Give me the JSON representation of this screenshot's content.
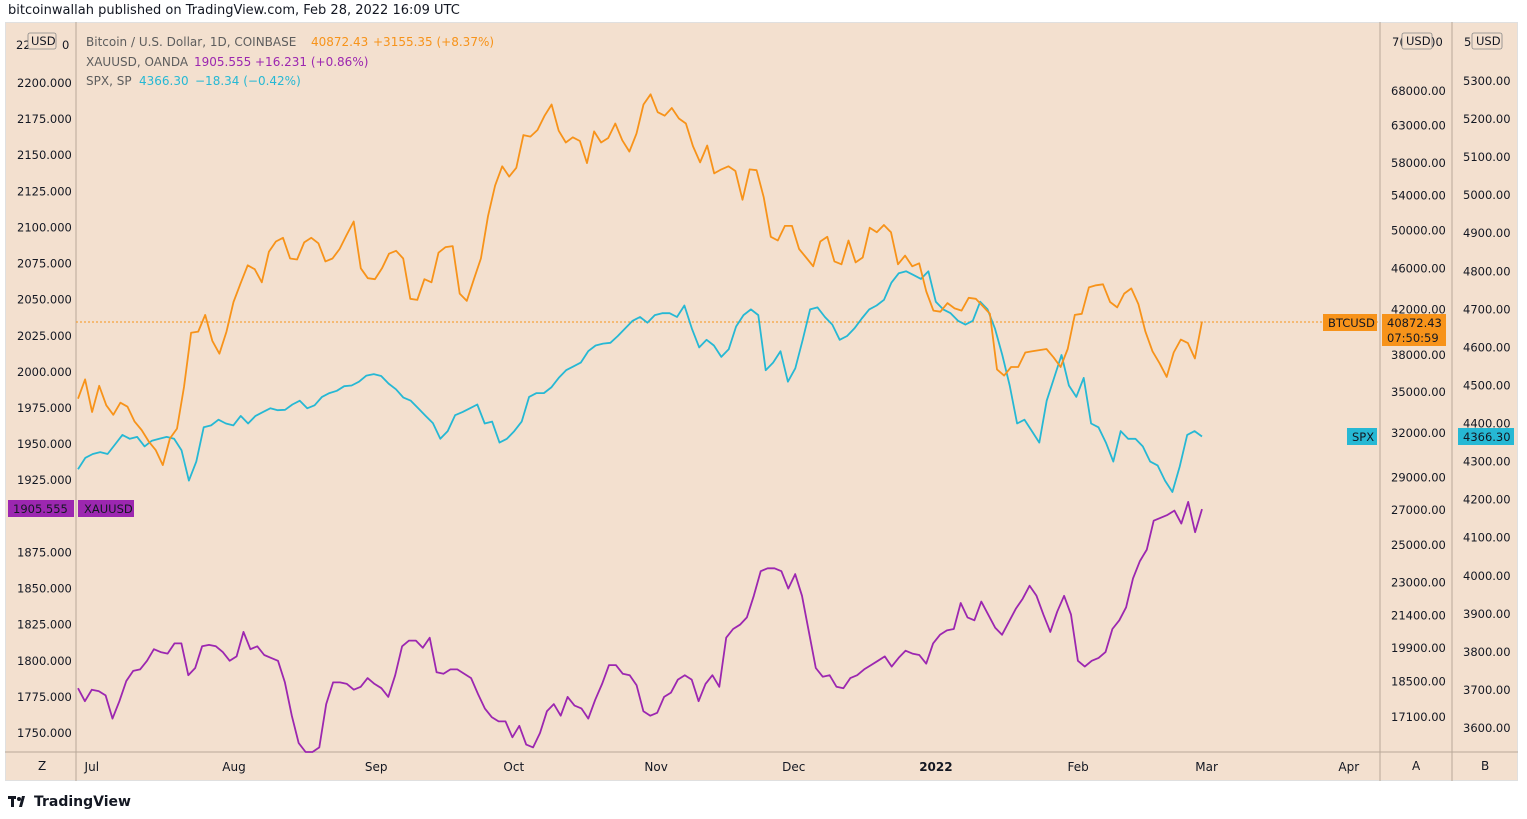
{
  "header": {
    "published": "bitcoinwallah published on TradingView.com, Feb 28, 2022 16:09 UTC"
  },
  "footer": {
    "brand": "TradingView"
  },
  "colors": {
    "btc": "#f7931a",
    "xau": "#9c27b0",
    "spx": "#26b8d4",
    "bg": "#f3e0cf"
  },
  "legend": [
    {
      "name": "Bitcoin / U.S. Dollar, 1D, COINBASE",
      "value": "40872.43",
      "change": "+3155.35 (+8.37%)"
    },
    {
      "name": "XAUUSD, OANDA",
      "value": "1905.555",
      "change": "+16.231 (+0.86%)"
    },
    {
      "name": "SPX, SP",
      "value": "4366.30",
      "change": "−18.34 (−0.42%)"
    }
  ],
  "axes": {
    "left_currency": "USD",
    "a_currency": "USD",
    "b_currency": "USD",
    "left_top_partial": "22",
    "left_top_partial2": "0",
    "a_top_partial": "7(",
    "a_top_partial2": ")0",
    "b_top_partial": "5",
    "left_ticks": [
      "2200.000",
      "2175.000",
      "2150.000",
      "2125.000",
      "2100.000",
      "2075.000",
      "2050.000",
      "2025.000",
      "2000.000",
      "1975.000",
      "1950.000",
      "1925.000",
      "1875.000",
      "1850.000",
      "1825.000",
      "1800.000",
      "1775.000",
      "1750.000"
    ],
    "a_ticks": [
      "68000.00",
      "63000.00",
      "58000.00",
      "54000.00",
      "50000.00",
      "46000.00",
      "42000.00",
      "38000.00",
      "35000.00",
      "32000.00",
      "29000.00",
      "27000.00",
      "25000.00",
      "23000.00",
      "21400.00",
      "19900.00",
      "18500.00",
      "17100.00"
    ],
    "b_ticks": [
      "5300.00",
      "5200.00",
      "5100.00",
      "5000.00",
      "4900.00",
      "4800.00",
      "4700.00",
      "4600.00",
      "4500.00",
      "4400.00",
      "4300.00",
      "4200.00",
      "4100.00",
      "4000.00",
      "3900.00",
      "3800.00",
      "3700.00",
      "3600.00"
    ],
    "x_ticks": [
      "Jul",
      "Aug",
      "Sep",
      "Oct",
      "Nov",
      "Dec",
      "2022",
      "Feb",
      "Mar",
      "Apr"
    ],
    "corner_left": "Z",
    "corner_a": "A",
    "corner_b": "B"
  },
  "badges": {
    "btc_label": "BTCUSD",
    "btc_value": "40872.43",
    "btc_countdown": "07:50:59",
    "spx_label": "SPX",
    "spx_value": "4366.30",
    "xau_value": "1905.555",
    "xau_label": "XAUUSD"
  },
  "chart_data": {
    "type": "line",
    "x_start": "2021-06-28",
    "x_end": "2022-02-28",
    "series": [
      {
        "name": "Bitcoin / U.S. Dollar, 1D, COINBASE",
        "axis": "A",
        "values": [
          34500,
          36000,
          33500,
          35500,
          34000,
          33300,
          34200,
          33900,
          32800,
          32200,
          31400,
          30800,
          29800,
          31600,
          32300,
          35400,
          39900,
          40000,
          41500,
          39200,
          38100,
          40000,
          42700,
          44500,
          46300,
          45900,
          44600,
          47700,
          48800,
          49200,
          47000,
          46900,
          48700,
          49200,
          48600,
          46700,
          47000,
          48000,
          49500,
          51000,
          46000,
          45000,
          44900,
          46000,
          47500,
          47800,
          47000,
          43000,
          42900,
          44900,
          44600,
          47600,
          48200,
          48300,
          43500,
          42800,
          44900,
          47000,
          51600,
          55200,
          57600,
          56300,
          57400,
          61700,
          61500,
          62400,
          64400,
          66000,
          62300,
          60700,
          61400,
          60900,
          58000,
          62200,
          60700,
          61300,
          63300,
          61000,
          59500,
          61900,
          66000,
          67500,
          64900,
          64400,
          65500,
          64000,
          63300,
          60200,
          58100,
          60300,
          56700,
          57200,
          57600,
          57000,
          53500,
          57200,
          57100,
          53800,
          49300,
          48900,
          50500,
          50500,
          48000,
          47100,
          46200,
          48800,
          49300,
          46700,
          46400,
          48900,
          46600,
          47100,
          50300,
          49800,
          50600,
          49800,
          46400,
          47300,
          46200,
          46500,
          43700,
          41900,
          41800,
          42600,
          42100,
          41900,
          43100,
          43000,
          42300,
          41600,
          36800,
          36300,
          37000,
          37000,
          38200,
          38300,
          38400,
          38500,
          37800,
          37000,
          38500,
          41500,
          41600,
          44100,
          44300,
          44400,
          42700,
          42200,
          43500,
          44000,
          42500,
          40000,
          38300,
          37300,
          36200,
          38200,
          39300,
          39000,
          37700,
          40900
        ]
      },
      {
        "name": "SPX, SP",
        "axis": "B",
        "values": [
          4280,
          4310,
          4320,
          4325,
          4320,
          4345,
          4370,
          4360,
          4365,
          4340,
          4355,
          4360,
          4365,
          4360,
          4330,
          4250,
          4300,
          4390,
          4395,
          4410,
          4400,
          4395,
          4420,
          4400,
          4420,
          4430,
          4440,
          4435,
          4436,
          4450,
          4460,
          4440,
          4448,
          4470,
          4480,
          4486,
          4498,
          4500,
          4510,
          4526,
          4530,
          4525,
          4505,
          4490,
          4468,
          4460,
          4440,
          4420,
          4401,
          4360,
          4380,
          4422,
          4430,
          4440,
          4450,
          4400,
          4405,
          4350,
          4360,
          4380,
          4405,
          4470,
          4480,
          4480,
          4495,
          4520,
          4540,
          4550,
          4560,
          4590,
          4605,
          4610,
          4612,
          4630,
          4650,
          4670,
          4680,
          4665,
          4685,
          4690,
          4690,
          4680,
          4710,
          4650,
          4600,
          4620,
          4605,
          4575,
          4595,
          4655,
          4685,
          4700,
          4685,
          4540,
          4560,
          4590,
          4510,
          4545,
          4620,
          4700,
          4705,
          4680,
          4660,
          4620,
          4630,
          4650,
          4676,
          4700,
          4710,
          4725,
          4770,
          4795,
          4800,
          4790,
          4780,
          4800,
          4720,
          4700,
          4690,
          4670,
          4660,
          4670,
          4720,
          4700,
          4650,
          4580,
          4500,
          4400,
          4410,
          4380,
          4350,
          4460,
          4520,
          4580,
          4500,
          4470,
          4520,
          4400,
          4390,
          4350,
          4300,
          4380,
          4360,
          4360,
          4340,
          4300,
          4290,
          4250,
          4220,
          4288,
          4370,
          4380,
          4366
        ]
      },
      {
        "name": "XAUUSD, OANDA",
        "axis": "left",
        "values": [
          1781,
          1772,
          1780,
          1779,
          1776,
          1760,
          1772,
          1786,
          1793,
          1794,
          1800,
          1808,
          1806,
          1805,
          1812,
          1812,
          1790,
          1795,
          1810,
          1811,
          1810,
          1806,
          1800,
          1803,
          1820,
          1808,
          1810,
          1804,
          1802,
          1800,
          1785,
          1762,
          1743,
          1731,
          1727,
          1740,
          1770,
          1785,
          1785,
          1784,
          1780,
          1782,
          1788,
          1784,
          1781,
          1775,
          1790,
          1810,
          1814,
          1814,
          1809,
          1816,
          1792,
          1791,
          1794,
          1794,
          1791,
          1788,
          1777,
          1767,
          1761,
          1758,
          1758,
          1747,
          1755,
          1742,
          1740,
          1750,
          1765,
          1770,
          1762,
          1775,
          1769,
          1767,
          1760,
          1773,
          1784,
          1797,
          1797,
          1791,
          1790,
          1783,
          1765,
          1762,
          1764,
          1775,
          1778,
          1787,
          1790,
          1787,
          1772,
          1784,
          1790,
          1782,
          1816,
          1822,
          1825,
          1830,
          1845,
          1862,
          1864,
          1864,
          1862,
          1850,
          1860,
          1845,
          1820,
          1795,
          1789,
          1790,
          1782,
          1781,
          1788,
          1790,
          1794,
          1797,
          1800,
          1803,
          1796,
          1802,
          1807,
          1805,
          1804,
          1798,
          1812,
          1818,
          1821,
          1822,
          1840,
          1830,
          1828,
          1841,
          1832,
          1823,
          1818,
          1827,
          1836,
          1843,
          1852,
          1845,
          1832,
          1820,
          1834,
          1845,
          1832,
          1800,
          1796,
          1800,
          1802,
          1806,
          1822,
          1828,
          1837,
          1857,
          1869,
          1877,
          1897,
          1899,
          1901,
          1904,
          1895,
          1910,
          1889,
          1905
        ]
      }
    ]
  }
}
